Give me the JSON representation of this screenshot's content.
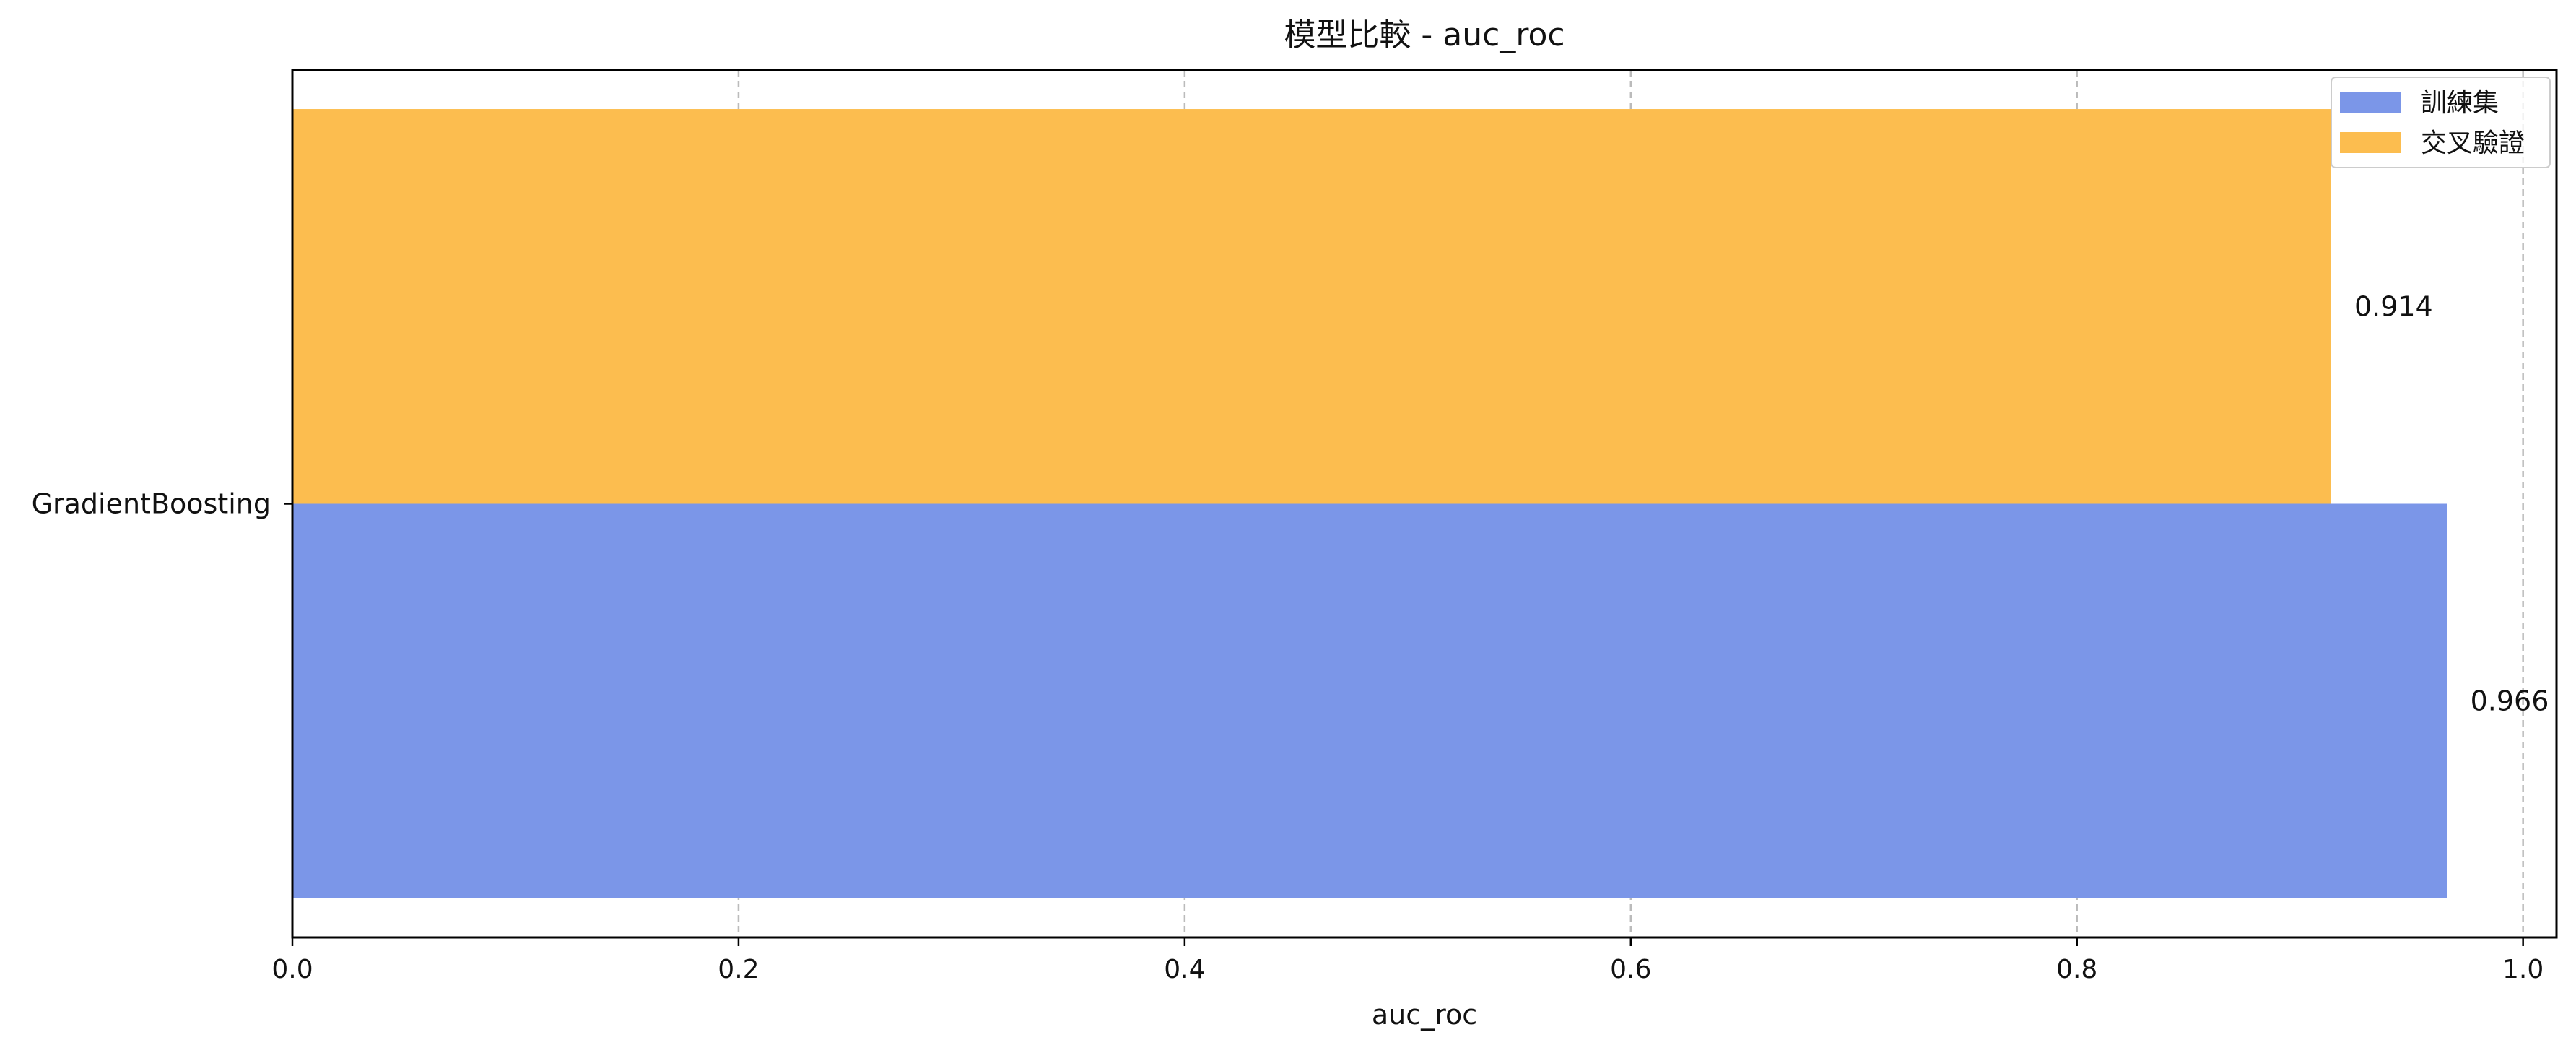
{
  "chart_data": {
    "type": "bar",
    "orientation": "horizontal",
    "title": "模型比較 - auc_roc",
    "xlabel": "auc_roc",
    "ylabel": "",
    "xlim": [
      0.0,
      1.015
    ],
    "xticks": [
      0.0,
      0.2,
      0.4,
      0.6,
      0.8,
      1.0
    ],
    "xtick_labels": [
      "0.0",
      "0.2",
      "0.4",
      "0.6",
      "0.8",
      "1.0"
    ],
    "categories": [
      "GradientBoosting"
    ],
    "series": [
      {
        "name": "訓練集",
        "color": "#7b96e8",
        "values": [
          0.966
        ],
        "value_labels": [
          "0.966"
        ]
      },
      {
        "name": "交叉驗證",
        "color": "#fcbd4f",
        "values": [
          0.914
        ],
        "value_labels": [
          "0.914"
        ]
      }
    ],
    "grid": "x-dashed",
    "legend_position": "top-right"
  }
}
